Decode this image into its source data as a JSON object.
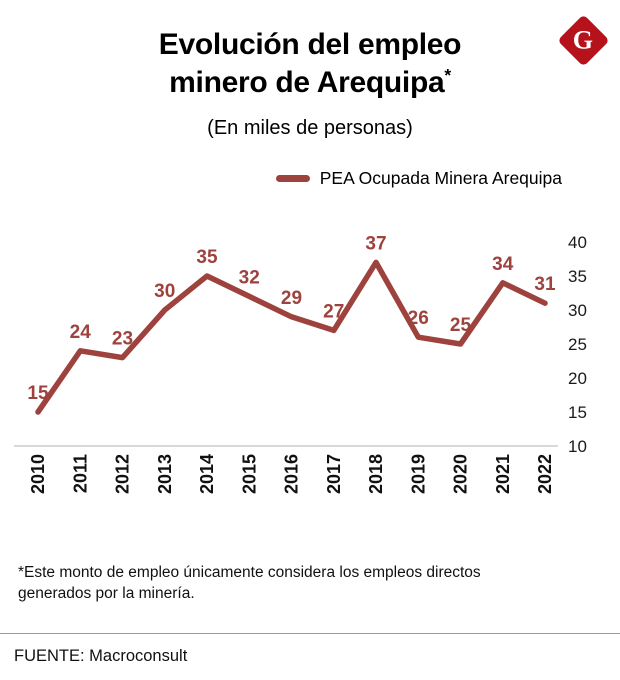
{
  "logo": {
    "letter": "G",
    "color": "#b5121b"
  },
  "title": {
    "line1": "Evolución del empleo",
    "line2": "minero de Arequipa",
    "asterisk": "*"
  },
  "subtitle": "(En miles de personas)",
  "legend": {
    "label": "PEA Ocupada Minera Arequipa"
  },
  "chart_data": {
    "type": "line",
    "categories": [
      "2010",
      "2011",
      "2012",
      "2013",
      "2014",
      "2015",
      "2016",
      "2017",
      "2018",
      "2019",
      "2020",
      "2021",
      "2022"
    ],
    "values": [
      15,
      24,
      23,
      30,
      35,
      32,
      29,
      27,
      37,
      26,
      25,
      34,
      31
    ],
    "series": [
      {
        "name": "PEA Ocupada Minera Arequipa",
        "values": [
          15,
          24,
          23,
          30,
          35,
          32,
          29,
          27,
          37,
          26,
          25,
          34,
          31
        ]
      }
    ],
    "title": "Evolución del empleo minero de Arequipa*",
    "subtitle": "(En miles de personas)",
    "xlabel": "",
    "ylabel": "",
    "ylim": [
      10,
      40
    ],
    "yticks": [
      10,
      15,
      20,
      25,
      30,
      35,
      40
    ],
    "ytick_side": "right",
    "grid": false,
    "legend_position": "top",
    "line_color": "#9e423e",
    "label_color": "#9e423e",
    "axis_color": "#b3b3b3"
  },
  "footnote": "*Este monto de empleo únicamente considera los empleos directos generados por la minería.",
  "source": "FUENTE: Macroconsult"
}
